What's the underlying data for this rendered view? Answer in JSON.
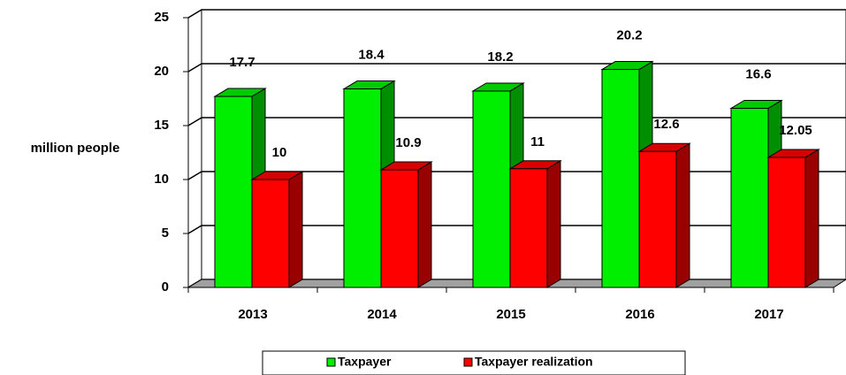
{
  "chart_data": {
    "type": "bar3d",
    "categories": [
      "2013",
      "2014",
      "2015",
      "2016",
      "2017"
    ],
    "y_label": "million people",
    "series": [
      {
        "name": "Taxpayer",
        "color": "#00ee00",
        "values": [
          17.7,
          18.4,
          18.2,
          20.2,
          16.6
        ]
      },
      {
        "name": "Taxpayer realization",
        "color": "#ff0000",
        "values": [
          10,
          10.9,
          11,
          12.6,
          12.05
        ]
      }
    ],
    "ylim": [
      0,
      25
    ],
    "yticks": [
      0,
      5,
      10,
      15,
      20,
      25
    ],
    "grid": true,
    "legend": "bottom"
  }
}
